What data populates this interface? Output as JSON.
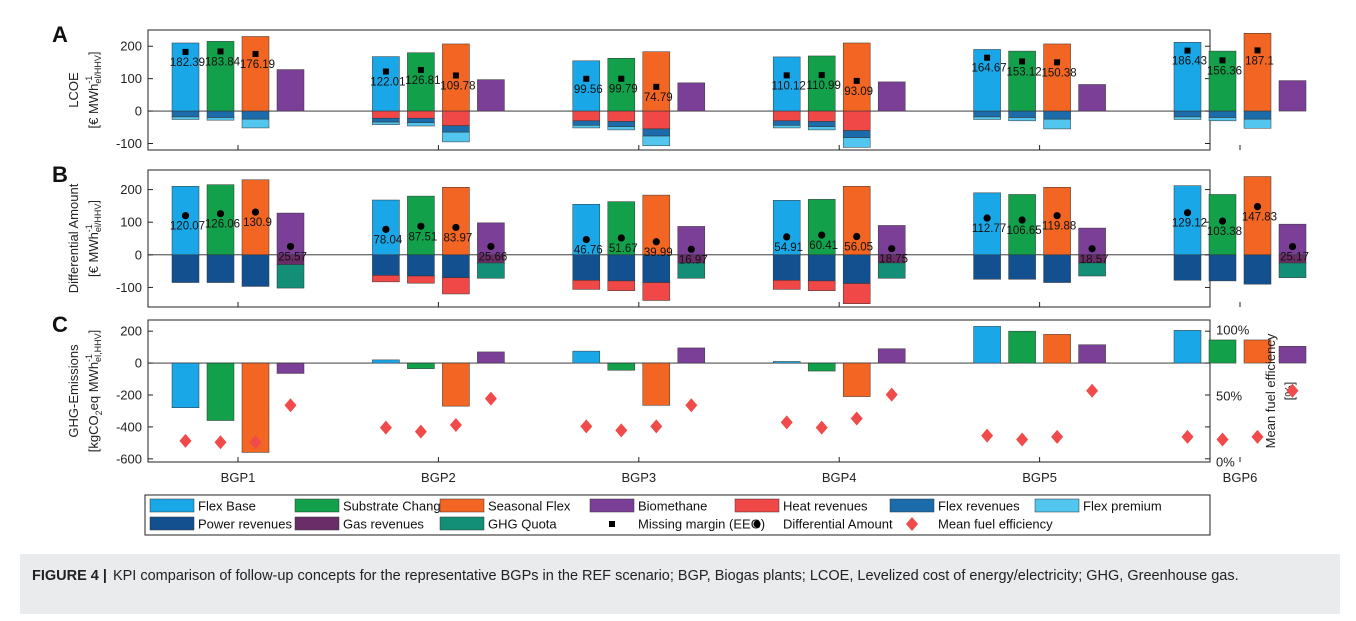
{
  "colors": {
    "flex_base": "#1aa7e8",
    "substrate_change": "#12a04a",
    "seasonal_flex": "#f26522",
    "biomethane": "#7b3f98",
    "heat_revenues": "#f04747",
    "flex_revenues": "#1c6cab",
    "flex_premium": "#52c6ee",
    "power_revenues": "#13508f",
    "gas_revenues": "#6a2d67",
    "ghg_quota": "#138f78",
    "marker": "#000000",
    "efficiency": "#f04a4a"
  },
  "chart_data": {
    "type": "bar",
    "categories": [
      "BGP1",
      "BGP2",
      "BGP3",
      "BGP4",
      "BGP5",
      "BGP6"
    ],
    "concepts": [
      "Flex Base",
      "Substrate Change",
      "Seasonal Flex",
      "Biomethane"
    ],
    "legend": {
      "placement": "bottom",
      "rows": [
        [
          {
            "label": "Flex Base",
            "kind": "patch",
            "color": "#1aa7e8"
          },
          {
            "label": "Substrate Change",
            "kind": "patch",
            "color": "#12a04a"
          },
          {
            "label": "Seasonal Flex",
            "kind": "patch",
            "color": "#f26522"
          },
          {
            "label": "Biomethane",
            "kind": "patch",
            "color": "#7b3f98"
          },
          {
            "label": "Heat revenues",
            "kind": "patch",
            "color": "#f04747"
          },
          {
            "label": "Flex revenues",
            "kind": "patch",
            "color": "#1c6cab"
          },
          {
            "label": "Flex premium",
            "kind": "patch",
            "color": "#52c6ee"
          }
        ],
        [
          {
            "label": "Power revenues",
            "kind": "patch",
            "color": "#13508f"
          },
          {
            "label": "Gas revenues",
            "kind": "patch",
            "color": "#6a2d67"
          },
          {
            "label": "GHG Quota",
            "kind": "patch",
            "color": "#138f78"
          },
          {
            "label": "Missing margin (EEG)",
            "kind": "square"
          },
          {
            "label": "Differential Amount",
            "kind": "circle"
          },
          {
            "label": "Mean fuel efficiency",
            "kind": "diamond"
          }
        ]
      ]
    },
    "panels": [
      {
        "letter": "A",
        "ylabel_line1": "LCOE",
        "ylabel_line2": "[€ MWh",
        "ylabel_sup": "-1",
        "ylabel_sub": "el/HHV",
        "ylabel_end": "]",
        "ylim": [
          -120,
          250
        ],
        "yticks": [
          -100,
          0,
          100,
          200
        ],
        "positive": [
          [
            210,
            215,
            230,
            128
          ],
          [
            168,
            180,
            207,
            97
          ],
          [
            155,
            163,
            183,
            87
          ],
          [
            167,
            170,
            210,
            90
          ],
          [
            190,
            185,
            207,
            82
          ],
          [
            212,
            185,
            240,
            94
          ]
        ],
        "negative": [
          [
            [
              {
                "c": "flex_revenues",
                "v": -18
              },
              {
                "c": "flex_premium",
                "v": -8
              }
            ],
            [
              {
                "c": "flex_revenues",
                "v": -20
              },
              {
                "c": "flex_premium",
                "v": -8
              }
            ],
            [
              {
                "c": "flex_revenues",
                "v": -25
              },
              {
                "c": "flex_premium",
                "v": -27
              }
            ],
            []
          ],
          [
            [
              {
                "c": "heat_revenues",
                "v": -22
              },
              {
                "c": "flex_revenues",
                "v": -12
              },
              {
                "c": "flex_premium",
                "v": -8
              }
            ],
            [
              {
                "c": "heat_revenues",
                "v": -22
              },
              {
                "c": "flex_revenues",
                "v": -14
              },
              {
                "c": "flex_premium",
                "v": -10
              }
            ],
            [
              {
                "c": "heat_revenues",
                "v": -45
              },
              {
                "c": "flex_revenues",
                "v": -20
              },
              {
                "c": "flex_premium",
                "v": -30
              }
            ],
            []
          ],
          [
            [
              {
                "c": "heat_revenues",
                "v": -30
              },
              {
                "c": "flex_revenues",
                "v": -14
              },
              {
                "c": "flex_premium",
                "v": -8
              }
            ],
            [
              {
                "c": "heat_revenues",
                "v": -32
              },
              {
                "c": "flex_revenues",
                "v": -16
              },
              {
                "c": "flex_premium",
                "v": -10
              }
            ],
            [
              {
                "c": "heat_revenues",
                "v": -55
              },
              {
                "c": "flex_revenues",
                "v": -22
              },
              {
                "c": "flex_premium",
                "v": -30
              }
            ],
            []
          ],
          [
            [
              {
                "c": "heat_revenues",
                "v": -30
              },
              {
                "c": "flex_revenues",
                "v": -14
              },
              {
                "c": "flex_premium",
                "v": -8
              }
            ],
            [
              {
                "c": "heat_revenues",
                "v": -32
              },
              {
                "c": "flex_revenues",
                "v": -16
              },
              {
                "c": "flex_premium",
                "v": -10
              }
            ],
            [
              {
                "c": "heat_revenues",
                "v": -60
              },
              {
                "c": "flex_revenues",
                "v": -22
              },
              {
                "c": "flex_premium",
                "v": -30
              }
            ],
            []
          ],
          [
            [
              {
                "c": "flex_revenues",
                "v": -18
              },
              {
                "c": "flex_premium",
                "v": -8
              }
            ],
            [
              {
                "c": "flex_revenues",
                "v": -20
              },
              {
                "c": "flex_premium",
                "v": -10
              }
            ],
            [
              {
                "c": "flex_revenues",
                "v": -25
              },
              {
                "c": "flex_premium",
                "v": -30
              }
            ],
            []
          ],
          [
            [
              {
                "c": "flex_revenues",
                "v": -18
              },
              {
                "c": "flex_premium",
                "v": -8
              }
            ],
            [
              {
                "c": "flex_revenues",
                "v": -20
              },
              {
                "c": "flex_premium",
                "v": -10
              }
            ],
            [
              {
                "c": "flex_revenues",
                "v": -25
              },
              {
                "c": "flex_premium",
                "v": -28
              }
            ],
            []
          ]
        ],
        "markers": {
          "shape": "square",
          "name": "Missing margin (EEG)",
          "values": [
            [
              182.39,
              183.84,
              176.19,
              null
            ],
            [
              122.01,
              126.81,
              109.78,
              null
            ],
            [
              99.56,
              99.79,
              74.79,
              null
            ],
            [
              110.12,
              110.99,
              93.09,
              null
            ],
            [
              164.67,
              153.12,
              150.38,
              null
            ],
            [
              186.43,
              156.36,
              187.1,
              null
            ]
          ],
          "labels": [
            [
              "182.39",
              "183.84",
              "176.19",
              ""
            ],
            [
              "122.01",
              "126.81",
              "109.78",
              ""
            ],
            [
              "99.56",
              "99.79",
              "74.79",
              ""
            ],
            [
              "110.12",
              "110.99",
              "93.09",
              ""
            ],
            [
              "164.67",
              "153.12",
              "150.38",
              ""
            ],
            [
              "186.43",
              "156.36",
              "187.1",
              ""
            ]
          ]
        }
      },
      {
        "letter": "B",
        "ylabel_line1": "Differential Amount",
        "ylabel_line2": "[€ MWh",
        "ylabel_sup": "-1",
        "ylabel_sub": "el/HHV",
        "ylabel_end": "]",
        "ylim": [
          -160,
          260
        ],
        "yticks": [
          -100,
          0,
          100,
          200
        ],
        "positive": [
          [
            210,
            215,
            230,
            128
          ],
          [
            168,
            180,
            207,
            98
          ],
          [
            155,
            163,
            183,
            87
          ],
          [
            167,
            170,
            210,
            90
          ],
          [
            190,
            185,
            207,
            82
          ],
          [
            212,
            185,
            240,
            94
          ]
        ],
        "negative": [
          [
            [
              {
                "c": "power_revenues",
                "v": -85
              }
            ],
            [
              {
                "c": "power_revenues",
                "v": -85
              }
            ],
            [
              {
                "c": "power_revenues",
                "v": -97
              }
            ],
            [
              {
                "c": "gas_revenues",
                "v": -30
              },
              {
                "c": "ghg_quota",
                "v": -72
              }
            ]
          ],
          [
            [
              {
                "c": "power_revenues",
                "v": -63
              },
              {
                "c": "heat_revenues",
                "v": -20
              }
            ],
            [
              {
                "c": "power_revenues",
                "v": -65
              },
              {
                "c": "heat_revenues",
                "v": -22
              }
            ],
            [
              {
                "c": "power_revenues",
                "v": -70
              },
              {
                "c": "heat_revenues",
                "v": -50
              }
            ],
            [
              {
                "c": "gas_revenues",
                "v": -25
              },
              {
                "c": "ghg_quota",
                "v": -47
              }
            ]
          ],
          [
            [
              {
                "c": "power_revenues",
                "v": -78
              },
              {
                "c": "heat_revenues",
                "v": -28
              }
            ],
            [
              {
                "c": "power_revenues",
                "v": -80
              },
              {
                "c": "heat_revenues",
                "v": -30
              }
            ],
            [
              {
                "c": "power_revenues",
                "v": -85
              },
              {
                "c": "heat_revenues",
                "v": -55
              }
            ],
            [
              {
                "c": "gas_revenues",
                "v": -25
              },
              {
                "c": "ghg_quota",
                "v": -47
              }
            ]
          ],
          [
            [
              {
                "c": "power_revenues",
                "v": -78
              },
              {
                "c": "heat_revenues",
                "v": -28
              }
            ],
            [
              {
                "c": "power_revenues",
                "v": -80
              },
              {
                "c": "heat_revenues",
                "v": -30
              }
            ],
            [
              {
                "c": "power_revenues",
                "v": -88
              },
              {
                "c": "heat_revenues",
                "v": -62
              }
            ],
            [
              {
                "c": "gas_revenues",
                "v": -25
              },
              {
                "c": "ghg_quota",
                "v": -47
              }
            ]
          ],
          [
            [
              {
                "c": "power_revenues",
                "v": -75
              }
            ],
            [
              {
                "c": "power_revenues",
                "v": -75
              }
            ],
            [
              {
                "c": "power_revenues",
                "v": -85
              }
            ],
            [
              {
                "c": "gas_revenues",
                "v": -25
              },
              {
                "c": "ghg_quota",
                "v": -40
              }
            ]
          ],
          [
            [
              {
                "c": "power_revenues",
                "v": -78
              }
            ],
            [
              {
                "c": "power_revenues",
                "v": -80
              }
            ],
            [
              {
                "c": "power_revenues",
                "v": -90
              }
            ],
            [
              {
                "c": "gas_revenues",
                "v": -25
              },
              {
                "c": "ghg_quota",
                "v": -45
              }
            ]
          ]
        ],
        "markers": {
          "shape": "circle",
          "name": "Differential Amount",
          "values": [
            [
              120.07,
              126.06,
              130.9,
              25.57
            ],
            [
              78.04,
              87.51,
              83.97,
              25.66
            ],
            [
              46.76,
              51.67,
              39.99,
              16.97
            ],
            [
              54.91,
              60.41,
              56.05,
              18.75
            ],
            [
              112.77,
              106.65,
              119.88,
              18.57
            ],
            [
              129.12,
              103.38,
              147.83,
              25.17
            ]
          ],
          "labels": [
            [
              "120.07",
              "126.06",
              "130.9",
              "25.57"
            ],
            [
              "78.04",
              "87.51",
              "83.97",
              "25.66"
            ],
            [
              "46.76",
              "51.67",
              "39.99",
              "16.97"
            ],
            [
              "54.91",
              "60.41",
              "56.05",
              "18.75"
            ],
            [
              "112.77",
              "106.65",
              "119.88",
              "18.57"
            ],
            [
              "129.12",
              "103.38",
              "147.83",
              "25.17"
            ]
          ]
        }
      },
      {
        "letter": "C",
        "ylabel_line1": "GHG-Emissions",
        "ylabel_line2": "[kgCO",
        "ylabel_sub_a": "2",
        "ylabel_mid": "eq MWh",
        "ylabel_sup": "-1",
        "ylabel_sub": "el,HHV",
        "ylabel_end": "]",
        "ylim": [
          -620,
          270
        ],
        "yticks": [
          -600,
          -400,
          -200,
          0,
          200
        ],
        "y2label_line1": "Mean fuel efficiency",
        "y2label_line2": "[%]",
        "y2lim": [
          0,
          1
        ],
        "y2ticks": [
          0,
          0.5,
          1
        ],
        "y2ticklabels": [
          "0%",
          "50%",
          "100%"
        ],
        "values": [
          [
            -280,
            -360,
            -560,
            -65
          ],
          [
            20,
            -35,
            -270,
            70
          ],
          [
            75,
            -45,
            -265,
            95
          ],
          [
            10,
            -50,
            -210,
            90
          ],
          [
            230,
            200,
            180,
            115
          ],
          [
            205,
            145,
            145,
            105
          ]
        ],
        "efficiency": [
          [
            0.16,
            0.15,
            0.15,
            0.43
          ],
          [
            0.26,
            0.23,
            0.28,
            0.48
          ],
          [
            0.27,
            0.24,
            0.27,
            0.43
          ],
          [
            0.3,
            0.26,
            0.33,
            0.51
          ],
          [
            0.2,
            0.17,
            0.19,
            0.54
          ],
          [
            0.19,
            0.17,
            0.19,
            0.54
          ]
        ]
      }
    ]
  },
  "caption": {
    "label": "FIGURE 4 |",
    "text": "KPI comparison of follow-up concepts for the representative BGPs in the REF scenario; BGP, Biogas plants; LCOE, Levelized cost of energy/electricity; GHG, Greenhouse gas."
  }
}
